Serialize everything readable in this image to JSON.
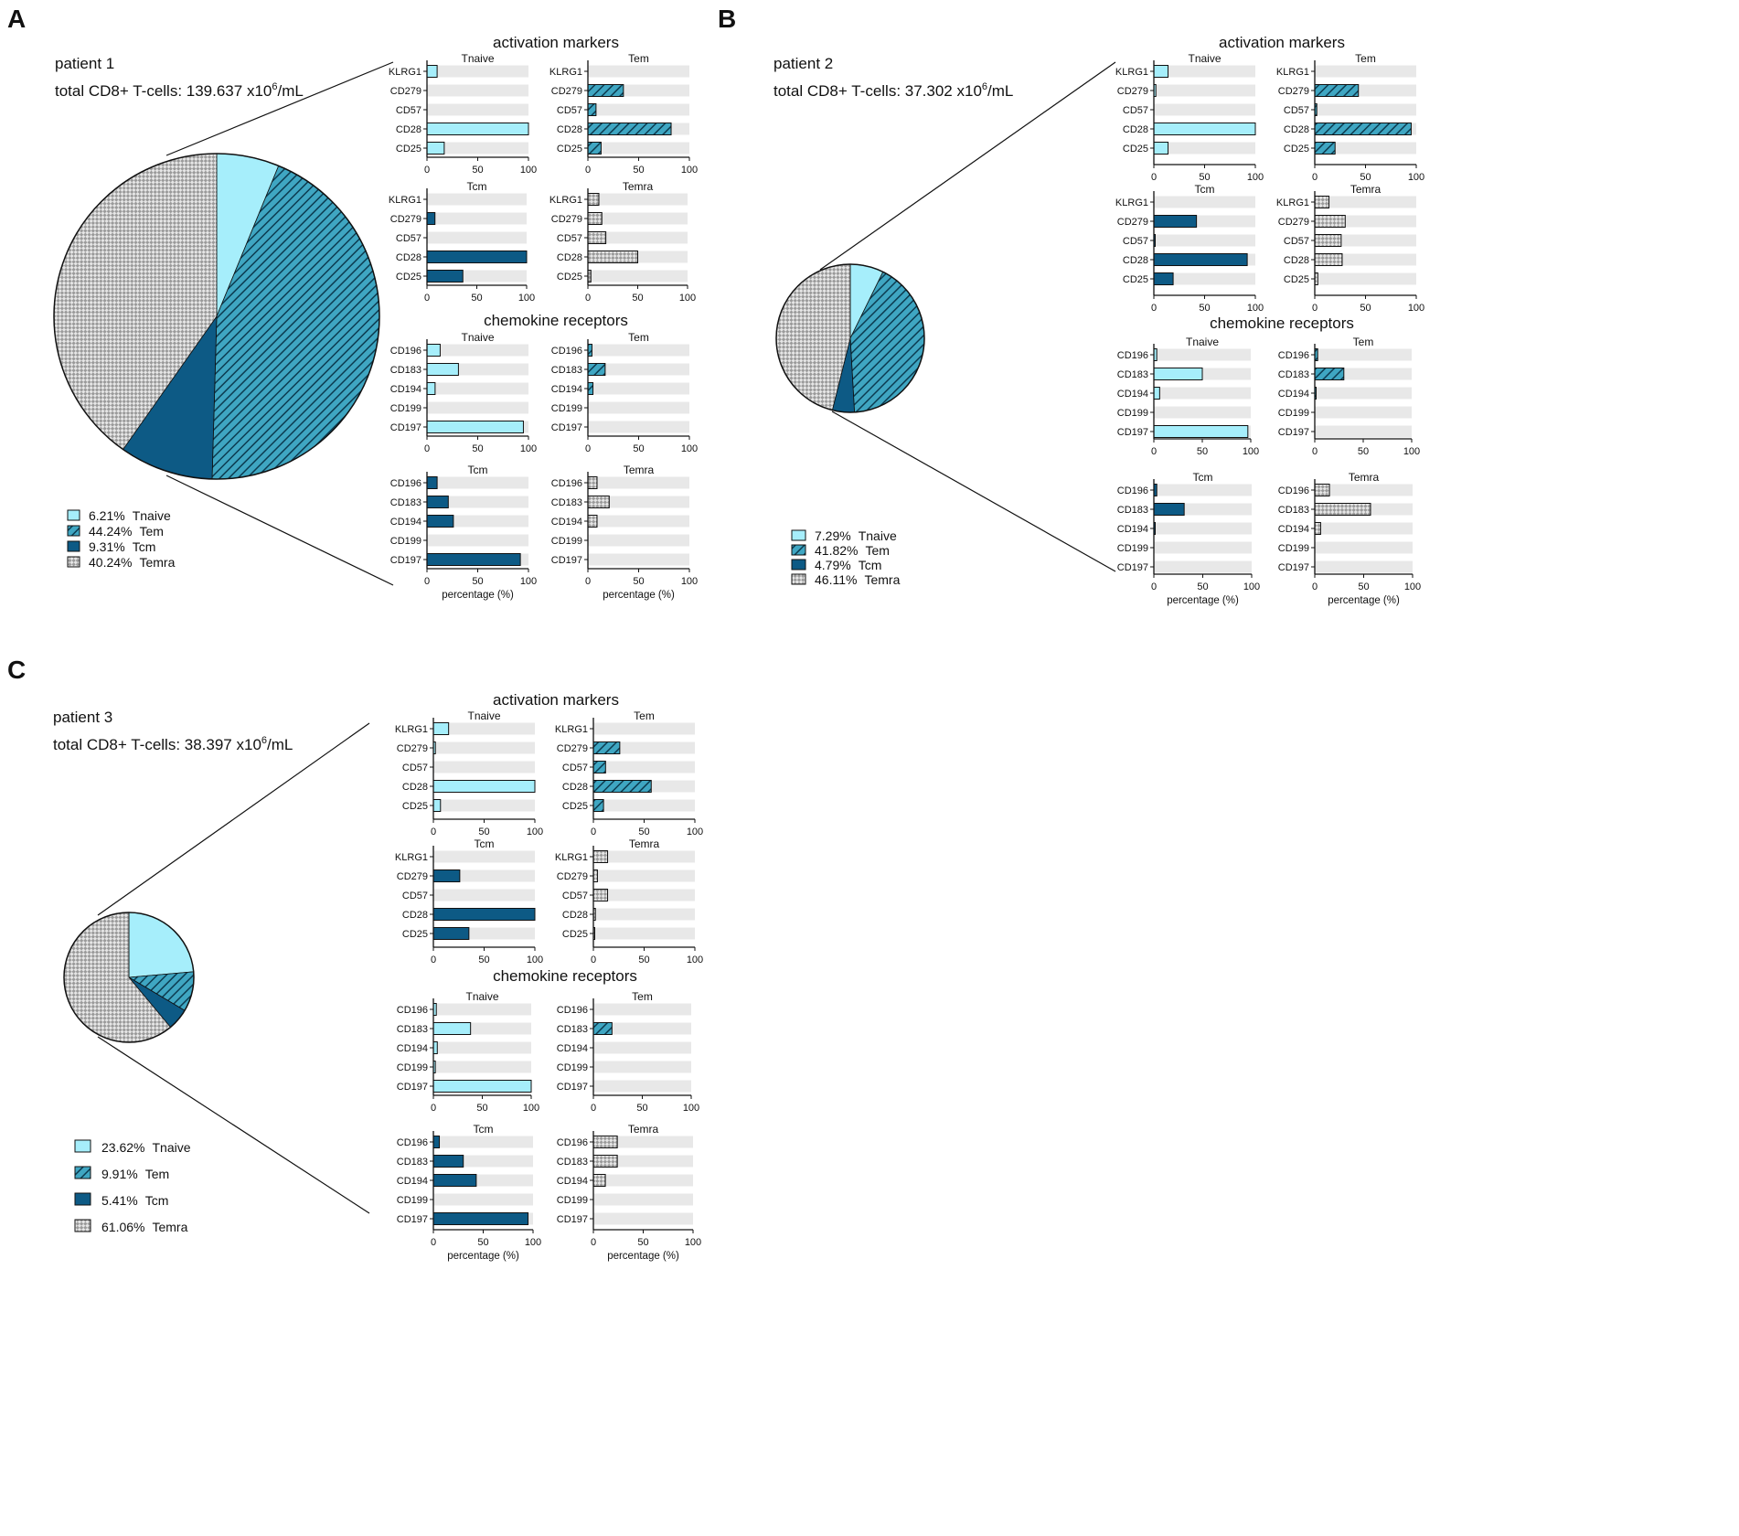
{
  "colors": {
    "Tnaive": "#a6eefb",
    "Tem": "#3fa6c2",
    "Tem_hatch": "#0c3b50",
    "Tcm": "#0d5a85",
    "Temra_a": "#9a9a9a",
    "Temra_b": "#e6e6e6",
    "track": "#e8e8e8",
    "outline": "#111111"
  },
  "labels": {
    "activation": "activation markers",
    "chemokine": "chemokine receptors",
    "xlabel": "percentage (%)"
  },
  "panels": [
    {
      "letter": "A",
      "patient": "patient 1",
      "total_prefix": "total CD8+ T-cells: 139.637 x10",
      "total_sup": "6",
      "total_suffix": "/mL",
      "legend": [
        {
          "pct": "6.21%",
          "name": "Tnaive"
        },
        {
          "pct": "44.24%",
          "name": "Tem"
        },
        {
          "pct": "9.31%",
          "name": "Tcm"
        },
        {
          "pct": "40.24%",
          "name": "Temra"
        }
      ]
    },
    {
      "letter": "B",
      "patient": "patient 2",
      "total_prefix": "total CD8+ T-cells: 37.302 x10",
      "total_sup": "6",
      "total_suffix": "/mL",
      "legend": [
        {
          "pct": "7.29%",
          "name": "Tnaive"
        },
        {
          "pct": "41.82%",
          "name": "Tem"
        },
        {
          "pct": "4.79%",
          "name": "Tcm"
        },
        {
          "pct": "46.11%",
          "name": "Temra"
        }
      ]
    },
    {
      "letter": "C",
      "patient": "patient 3",
      "total_prefix": "total CD8+ T-cells: 38.397 x10",
      "total_sup": "6",
      "total_suffix": "/mL",
      "legend": [
        {
          "pct": "23.62%",
          "name": "Tnaive"
        },
        {
          "pct": "9.91%",
          "name": "Tem"
        },
        {
          "pct": "5.41%",
          "name": "Tcm"
        },
        {
          "pct": "61.06%",
          "name": "Temra"
        }
      ]
    }
  ],
  "chart_data": [
    {
      "type": "pie",
      "title": "patient 1",
      "categories": [
        "Tnaive",
        "Tem",
        "Tcm",
        "Temra"
      ],
      "values": [
        6.21,
        44.24,
        9.31,
        40.24
      ]
    },
    {
      "type": "pie",
      "title": "patient 2",
      "categories": [
        "Tnaive",
        "Tem",
        "Tcm",
        "Temra"
      ],
      "values": [
        7.29,
        41.82,
        4.79,
        46.11
      ]
    },
    {
      "type": "pie",
      "title": "patient 3",
      "categories": [
        "Tnaive",
        "Tem",
        "Tcm",
        "Temra"
      ],
      "values": [
        23.62,
        9.91,
        5.41,
        61.06
      ]
    },
    {
      "type": "bar",
      "orientation": "horizontal",
      "patient": "patient 1",
      "group": "activation markers",
      "title": "Tnaive",
      "categories": [
        "KLRG1",
        "CD279",
        "CD57",
        "CD28",
        "CD25"
      ],
      "values": [
        10,
        0,
        0,
        100,
        17
      ],
      "xlim": [
        0,
        100
      ],
      "xticks": [
        0,
        50,
        100
      ]
    },
    {
      "type": "bar",
      "orientation": "horizontal",
      "patient": "patient 1",
      "group": "activation markers",
      "title": "Tem",
      "categories": [
        "KLRG1",
        "CD279",
        "CD57",
        "CD28",
        "CD25"
      ],
      "values": [
        0,
        35,
        8,
        82,
        13
      ],
      "xlim": [
        0,
        100
      ],
      "xticks": [
        0,
        50,
        100
      ]
    },
    {
      "type": "bar",
      "orientation": "horizontal",
      "patient": "patient 1",
      "group": "activation markers",
      "title": "Tcm",
      "categories": [
        "KLRG1",
        "CD279",
        "CD57",
        "CD28",
        "CD25"
      ],
      "values": [
        0,
        8,
        0,
        100,
        36
      ],
      "xlim": [
        0,
        100
      ],
      "xticks": [
        0,
        50,
        100
      ]
    },
    {
      "type": "bar",
      "orientation": "horizontal",
      "patient": "patient 1",
      "group": "activation markers",
      "title": "Temra",
      "categories": [
        "KLRG1",
        "CD279",
        "CD57",
        "CD28",
        "CD25"
      ],
      "values": [
        11,
        14,
        18,
        50,
        3
      ],
      "xlim": [
        0,
        100
      ],
      "xticks": [
        0,
        50,
        100
      ]
    },
    {
      "type": "bar",
      "orientation": "horizontal",
      "patient": "patient 1",
      "group": "chemokine receptors",
      "title": "Tnaive",
      "categories": [
        "CD196",
        "CD183",
        "CD194",
        "CD199",
        "CD197"
      ],
      "values": [
        13,
        31,
        8,
        0,
        95
      ],
      "xlim": [
        0,
        100
      ],
      "xticks": [
        0,
        50,
        100
      ],
      "xlabel": ""
    },
    {
      "type": "bar",
      "orientation": "horizontal",
      "patient": "patient 1",
      "group": "chemokine receptors",
      "title": "Tem",
      "categories": [
        "CD196",
        "CD183",
        "CD194",
        "CD199",
        "CD197"
      ],
      "values": [
        4,
        17,
        5,
        0,
        0
      ],
      "xlim": [
        0,
        100
      ],
      "xticks": [
        0,
        50,
        100
      ],
      "xlabel": ""
    },
    {
      "type": "bar",
      "orientation": "horizontal",
      "patient": "patient 1",
      "group": "chemokine receptors",
      "title": "Tcm",
      "categories": [
        "CD196",
        "CD183",
        "CD194",
        "CD199",
        "CD197"
      ],
      "values": [
        10,
        21,
        26,
        0,
        92
      ],
      "xlim": [
        0,
        100
      ],
      "xticks": [
        0,
        50,
        100
      ],
      "xlabel": "percentage (%)"
    },
    {
      "type": "bar",
      "orientation": "horizontal",
      "patient": "patient 1",
      "group": "chemokine receptors",
      "title": "Temra",
      "categories": [
        "CD196",
        "CD183",
        "CD194",
        "CD199",
        "CD197"
      ],
      "values": [
        9,
        21,
        9,
        0,
        0
      ],
      "xlim": [
        0,
        100
      ],
      "xticks": [
        0,
        50,
        100
      ],
      "xlabel": "percentage (%)"
    },
    {
      "type": "bar",
      "orientation": "horizontal",
      "patient": "patient 2",
      "group": "activation markers",
      "title": "Tnaive",
      "categories": [
        "KLRG1",
        "CD279",
        "CD57",
        "CD28",
        "CD25"
      ],
      "values": [
        14,
        2,
        0,
        100,
        14
      ],
      "xlim": [
        0,
        100
      ],
      "xticks": [
        0,
        50,
        100
      ]
    },
    {
      "type": "bar",
      "orientation": "horizontal",
      "patient": "patient 2",
      "group": "activation markers",
      "title": "Tem",
      "categories": [
        "KLRG1",
        "CD279",
        "CD57",
        "CD28",
        "CD25"
      ],
      "values": [
        0,
        43,
        2,
        95,
        20
      ],
      "xlim": [
        0,
        100
      ],
      "xticks": [
        0,
        50,
        100
      ]
    },
    {
      "type": "bar",
      "orientation": "horizontal",
      "patient": "patient 2",
      "group": "activation markers",
      "title": "Tcm",
      "categories": [
        "KLRG1",
        "CD279",
        "CD57",
        "CD28",
        "CD25"
      ],
      "values": [
        0,
        42,
        1,
        92,
        19
      ],
      "xlim": [
        0,
        100
      ],
      "xticks": [
        0,
        50,
        100
      ]
    },
    {
      "type": "bar",
      "orientation": "horizontal",
      "patient": "patient 2",
      "group": "activation markers",
      "title": "Temra",
      "categories": [
        "KLRG1",
        "CD279",
        "CD57",
        "CD28",
        "CD25"
      ],
      "values": [
        14,
        30,
        26,
        27,
        3
      ],
      "xlim": [
        0,
        100
      ],
      "xticks": [
        0,
        50,
        100
      ]
    },
    {
      "type": "bar",
      "orientation": "horizontal",
      "patient": "patient 2",
      "group": "chemokine receptors",
      "title": "Tnaive",
      "categories": [
        "CD196",
        "CD183",
        "CD194",
        "CD199",
        "CD197"
      ],
      "values": [
        3,
        50,
        6,
        0,
        97
      ],
      "xlim": [
        0,
        100
      ],
      "xticks": [
        0,
        50,
        100
      ],
      "xlabel": ""
    },
    {
      "type": "bar",
      "orientation": "horizontal",
      "patient": "patient 2",
      "group": "chemokine receptors",
      "title": "Tem",
      "categories": [
        "CD196",
        "CD183",
        "CD194",
        "CD199",
        "CD197"
      ],
      "values": [
        3,
        30,
        1,
        0,
        0
      ],
      "xlim": [
        0,
        100
      ],
      "xticks": [
        0,
        50,
        100
      ],
      "xlabel": ""
    },
    {
      "type": "bar",
      "orientation": "horizontal",
      "patient": "patient 2",
      "group": "chemokine receptors",
      "title": "Tcm",
      "categories": [
        "CD196",
        "CD183",
        "CD194",
        "CD199",
        "CD197"
      ],
      "values": [
        3,
        31,
        1,
        0,
        0
      ],
      "xlim": [
        0,
        100
      ],
      "xticks": [
        0,
        50,
        100
      ],
      "xlabel": "percentage (%)"
    },
    {
      "type": "bar",
      "orientation": "horizontal",
      "patient": "patient 2",
      "group": "chemokine receptors",
      "title": "Temra",
      "categories": [
        "CD196",
        "CD183",
        "CD194",
        "CD199",
        "CD197"
      ],
      "values": [
        15,
        57,
        6,
        0,
        0
      ],
      "xlim": [
        0,
        100
      ],
      "xticks": [
        0,
        50,
        100
      ],
      "xlabel": "percentage (%)"
    },
    {
      "type": "bar",
      "orientation": "horizontal",
      "patient": "patient 3",
      "group": "activation markers",
      "title": "Tnaive",
      "categories": [
        "KLRG1",
        "CD279",
        "CD57",
        "CD28",
        "CD25"
      ],
      "values": [
        15,
        2,
        0,
        100,
        7
      ],
      "xlim": [
        0,
        100
      ],
      "xticks": [
        0,
        50,
        100
      ]
    },
    {
      "type": "bar",
      "orientation": "horizontal",
      "patient": "patient 3",
      "group": "activation markers",
      "title": "Tem",
      "categories": [
        "KLRG1",
        "CD279",
        "CD57",
        "CD28",
        "CD25"
      ],
      "values": [
        0,
        26,
        12,
        57,
        10
      ],
      "xlim": [
        0,
        100
      ],
      "xticks": [
        0,
        50,
        100
      ]
    },
    {
      "type": "bar",
      "orientation": "horizontal",
      "patient": "patient 3",
      "group": "activation markers",
      "title": "Tcm",
      "categories": [
        "KLRG1",
        "CD279",
        "CD57",
        "CD28",
        "CD25"
      ],
      "values": [
        0,
        26,
        0,
        100,
        35
      ],
      "xlim": [
        0,
        100
      ],
      "xticks": [
        0,
        50,
        100
      ]
    },
    {
      "type": "bar",
      "orientation": "horizontal",
      "patient": "patient 3",
      "group": "activation markers",
      "title": "Temra",
      "categories": [
        "KLRG1",
        "CD279",
        "CD57",
        "CD28",
        "CD25"
      ],
      "values": [
        14,
        4,
        14,
        2,
        1
      ],
      "xlim": [
        0,
        100
      ],
      "xticks": [
        0,
        50,
        100
      ]
    },
    {
      "type": "bar",
      "orientation": "horizontal",
      "patient": "patient 3",
      "group": "chemokine receptors",
      "title": "Tnaive",
      "categories": [
        "CD196",
        "CD183",
        "CD194",
        "CD199",
        "CD197"
      ],
      "values": [
        3,
        38,
        4,
        2,
        100
      ],
      "xlim": [
        0,
        100
      ],
      "xticks": [
        0,
        50,
        100
      ],
      "xlabel": ""
    },
    {
      "type": "bar",
      "orientation": "horizontal",
      "patient": "patient 3",
      "group": "chemokine receptors",
      "title": "Tem",
      "categories": [
        "CD196",
        "CD183",
        "CD194",
        "CD199",
        "CD197"
      ],
      "values": [
        0,
        19,
        0,
        0,
        0
      ],
      "xlim": [
        0,
        100
      ],
      "xticks": [
        0,
        50,
        100
      ],
      "xlabel": ""
    },
    {
      "type": "bar",
      "orientation": "horizontal",
      "patient": "patient 3",
      "group": "chemokine receptors",
      "title": "Tcm",
      "categories": [
        "CD196",
        "CD183",
        "CD194",
        "CD199",
        "CD197"
      ],
      "values": [
        6,
        30,
        43,
        0,
        95
      ],
      "xlim": [
        0,
        100
      ],
      "xticks": [
        0,
        50,
        100
      ],
      "xlabel": "percentage (%)"
    },
    {
      "type": "bar",
      "orientation": "horizontal",
      "patient": "patient 3",
      "group": "chemokine receptors",
      "title": "Temra",
      "categories": [
        "CD196",
        "CD183",
        "CD194",
        "CD199",
        "CD197"
      ],
      "values": [
        24,
        24,
        12,
        0,
        0
      ],
      "xlim": [
        0,
        100
      ],
      "xticks": [
        0,
        50,
        100
      ],
      "xlabel": "percentage (%)"
    }
  ]
}
